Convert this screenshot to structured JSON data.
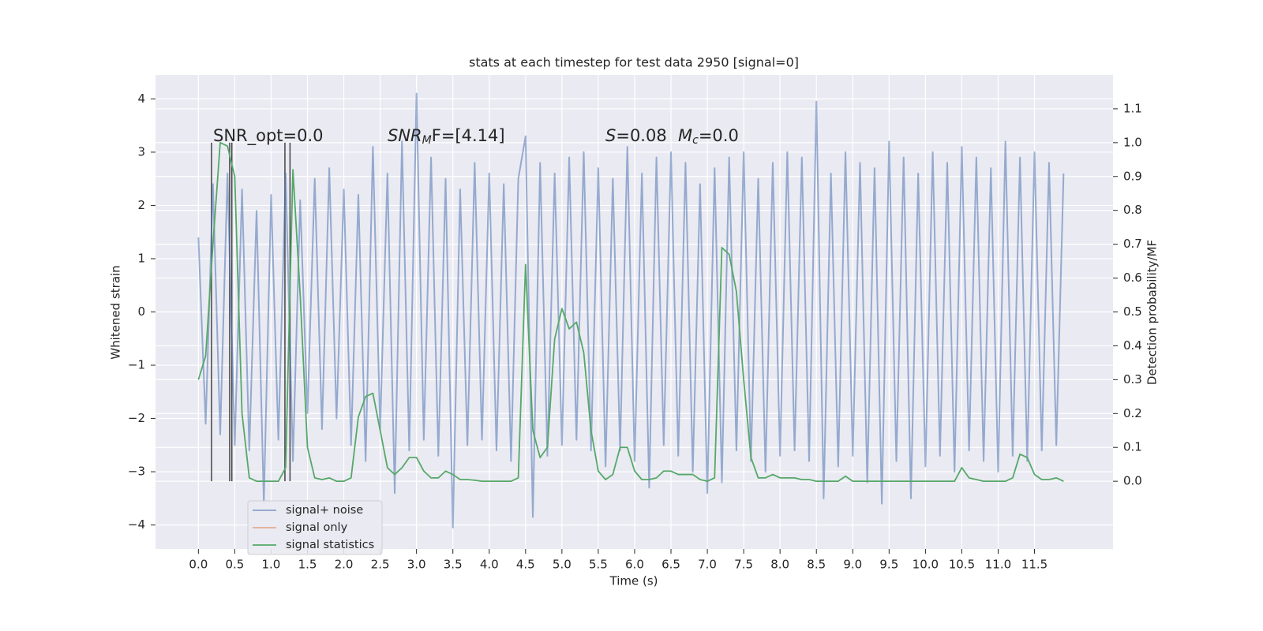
{
  "chart_data": {
    "type": "line",
    "title": "stats at each timestep for test data 2950 [signal=0]",
    "xlabel": "Time (s)",
    "ylabel": "Whitened strain",
    "y2label": "Detection probability/MF",
    "xlim": [
      -0.59,
      12.58
    ],
    "ylim": [
      -4.45,
      4.45
    ],
    "y2lim": [
      -0.2,
      1.2
    ],
    "xticks": [
      {
        "value": 0,
        "label": "0.0"
      },
      0.5,
      {
        "value": 1,
        "label": "1.0"
      },
      1.5,
      {
        "value": 2,
        "label": "2.0"
      },
      2.5,
      {
        "value": 3,
        "label": "3.0"
      },
      3.5,
      {
        "value": 4,
        "label": "4.0"
      },
      4.5,
      {
        "value": 5,
        "label": "5.0"
      },
      5.5,
      {
        "value": 6,
        "label": "6.0"
      },
      6.5,
      {
        "value": 7,
        "label": "7.0"
      },
      7.5,
      {
        "value": 8,
        "label": "8.0"
      },
      8.5,
      {
        "value": 9,
        "label": "9.0"
      },
      9.5,
      {
        "value": 10,
        "label": "10.0"
      },
      10.5,
      {
        "value": 11,
        "label": "11.0"
      },
      11.5
    ],
    "yticks": [
      {
        "value": -4,
        "label": "−4"
      },
      {
        "value": -3,
        "label": "−3"
      },
      {
        "value": -2,
        "label": "−2"
      },
      {
        "value": -1,
        "label": "−1"
      },
      0,
      1,
      2,
      3,
      4
    ],
    "y2ticks": [
      {
        "value": 0,
        "label": "0.0"
      },
      0.1,
      0.2,
      0.3,
      0.4,
      0.5,
      0.6,
      0.7,
      0.8,
      0.9,
      {
        "value": 1,
        "label": "1.0"
      },
      1.1
    ],
    "grid": true,
    "legend": "lower left",
    "x": [
      0,
      0.1,
      0.2,
      0.3,
      0.4,
      0.5,
      0.6,
      0.7,
      0.8,
      0.9,
      1,
      1.1,
      1.2,
      1.3,
      1.4,
      1.5,
      1.6,
      1.7,
      1.8,
      1.9,
      2,
      2.1,
      2.2,
      2.3,
      2.4,
      2.5,
      2.6,
      2.7,
      2.8,
      2.9,
      3,
      3.1,
      3.2,
      3.3,
      3.4,
      3.5,
      3.6,
      3.7,
      3.8,
      3.9,
      4,
      4.1,
      4.2,
      4.3,
      4.4,
      4.5,
      4.6,
      4.7,
      4.8,
      4.9,
      5,
      5.1,
      5.2,
      5.3,
      5.4,
      5.5,
      5.6,
      5.7,
      5.8,
      5.9,
      6,
      6.1,
      6.2,
      6.3,
      6.4,
      6.5,
      6.6,
      6.7,
      6.8,
      6.9,
      7,
      7.1,
      7.2,
      7.3,
      7.4,
      7.5,
      7.6,
      7.7,
      7.8,
      7.9,
      8,
      8.1,
      8.2,
      8.3,
      8.4,
      8.5,
      8.6,
      8.7,
      8.8,
      8.9,
      9,
      9.1,
      9.2,
      9.3,
      9.4,
      9.5,
      9.6,
      9.7,
      9.8,
      9.9,
      10,
      10.1,
      10.2,
      10.3,
      10.4,
      10.5,
      10.6,
      10.7,
      10.8,
      10.9,
      11,
      11.1,
      11.2,
      11.3,
      11.4,
      11.5,
      11.6,
      11.7,
      11.8,
      11.9
    ],
    "series": [
      {
        "name": "signal+ noise",
        "color": "#4c72b0",
        "axis": "y",
        "values": [
          1.4,
          -2.1,
          2.4,
          -2.3,
          2.6,
          -2.5,
          2.3,
          -2.6,
          1.9,
          -3.6,
          2.2,
          -2.4,
          2.6,
          -2.8,
          2.1,
          -1.9,
          2.5,
          -2.2,
          2.7,
          -2.0,
          2.3,
          -2.5,
          2.2,
          -2.8,
          3.1,
          -2.2,
          2.6,
          -3.4,
          3.2,
          -2.6,
          4.1,
          -2.4,
          2.9,
          -2.7,
          2.5,
          -4.05,
          2.3,
          -2.5,
          2.8,
          -2.4,
          2.6,
          -2.6,
          2.4,
          -2.8,
          2.5,
          3.3,
          -3.85,
          2.8,
          -2.7,
          2.6,
          -2.5,
          2.9,
          -2.4,
          3.0,
          -2.6,
          2.7,
          -2.9,
          2.5,
          -2.6,
          3.1,
          -2.8,
          2.6,
          -3.3,
          2.9,
          -2.5,
          3.0,
          -2.7,
          2.8,
          -3.0,
          2.4,
          -3.4,
          2.7,
          -3.2,
          2.9,
          -2.6,
          3.0,
          -2.8,
          2.5,
          -3.0,
          2.8,
          -2.7,
          3.0,
          -2.6,
          2.9,
          -2.8,
          3.95,
          -3.5,
          2.6,
          -2.9,
          3.0,
          -2.7,
          2.8,
          -3.2,
          2.7,
          -3.6,
          3.2,
          -2.8,
          2.9,
          -3.5,
          2.6,
          -2.9,
          3.0,
          -2.7,
          2.8,
          -3.0,
          3.1,
          -2.6,
          2.9,
          -2.8,
          2.7,
          -3.0,
          3.2,
          -2.7,
          2.9,
          -2.8,
          3.0,
          -2.6,
          2.8,
          -2.5,
          2.6
        ]
      },
      {
        "name": "signal only",
        "color": "#dd8452",
        "axis": "y"
      },
      {
        "name": "signal statistics",
        "color": "#55a868",
        "axis": "y2",
        "values": [
          0.3,
          0.37,
          0.7,
          1.0,
          0.99,
          0.9,
          0.2,
          0.01,
          0,
          0,
          0,
          0,
          0.04,
          0.92,
          0.55,
          0.1,
          0.01,
          0.005,
          0.01,
          0,
          0,
          0.01,
          0.19,
          0.25,
          0.26,
          0.15,
          0.04,
          0.02,
          0.04,
          0.07,
          0.07,
          0.03,
          0.01,
          0.01,
          0.03,
          0.02,
          0.005,
          0.005,
          0.003,
          0,
          0,
          0,
          0,
          0,
          0.01,
          0.64,
          0.15,
          0.07,
          0.1,
          0.42,
          0.51,
          0.45,
          0.47,
          0.38,
          0.15,
          0.03,
          0.005,
          0.02,
          0.1,
          0.1,
          0.03,
          0.005,
          0.005,
          0.01,
          0.03,
          0.03,
          0.02,
          0.02,
          0.02,
          0.005,
          0,
          0.01,
          0.69,
          0.67,
          0.56,
          0.3,
          0.07,
          0.01,
          0.01,
          0.02,
          0.01,
          0.01,
          0.01,
          0.005,
          0.005,
          0,
          0,
          0,
          0,
          0.015,
          0,
          0,
          0,
          0,
          0,
          0,
          0,
          0,
          0,
          0,
          0,
          0,
          0,
          0,
          0,
          0.04,
          0.01,
          0.005,
          0,
          0,
          0,
          0,
          0.01,
          0.08,
          0.07,
          0.02,
          0.005,
          0.005,
          0.01,
          0
        ]
      }
    ],
    "vlines": {
      "x": [
        0.18,
        0.43,
        0.46,
        1.19,
        1.26
      ],
      "range": [
        0,
        1
      ],
      "axis": "y2",
      "color": "#444444"
    },
    "annotations": [
      {
        "parts": [
          {
            "text": "SNR_opt=0.0"
          }
        ]
      },
      {
        "parts": [
          {
            "text": "SNR",
            "italic": true
          },
          {
            "text": "M",
            "italic": true,
            "sub": true
          },
          {
            "text": "F=[4.14]"
          }
        ]
      },
      {
        "parts": [
          {
            "text": "S",
            "italic": true
          },
          {
            "text": "=0.08"
          }
        ]
      },
      {
        "parts": [
          {
            "text": "M",
            "italic": true
          },
          {
            "text": "c",
            "italic": true,
            "sub": true
          },
          {
            "text": "=0.0"
          }
        ]
      }
    ]
  }
}
